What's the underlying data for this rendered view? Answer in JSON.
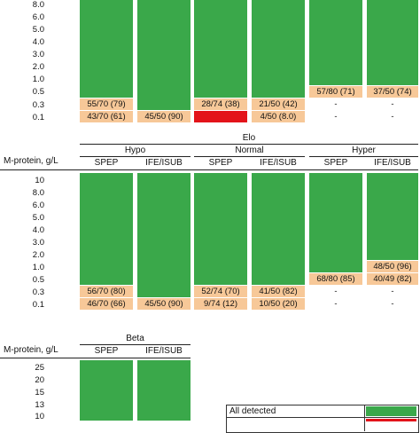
{
  "colors": {
    "detected": "#3aa84a",
    "partial": "#f7c898",
    "none": "#e3131a"
  },
  "top": {
    "y_labels": [
      "8.0",
      "6.0",
      "5.0",
      "4.0",
      "3.0",
      "2.0",
      "1.0",
      "0.5",
      "0.3",
      "0.1"
    ],
    "cells_03": [
      "55/70 (79)",
      "28/74 (38)",
      "21/50 (42)",
      "-",
      "-"
    ],
    "cells_01": [
      "43/70 (61)",
      "45/50 (90)",
      "4/50 (8.0)",
      "-",
      "-"
    ],
    "cells_05": [
      "57/80 (71)",
      "37/50 (74)"
    ]
  },
  "elo": {
    "title": "Elo",
    "groups": [
      "Hypo",
      "Normal",
      "Hyper"
    ],
    "methods": [
      "SPEP",
      "IFE/ISUB",
      "SPEP",
      "IFE/ISUB",
      "SPEP",
      "IFE/ISUB"
    ],
    "axis_label": "M-protein, g/L",
    "y_labels": [
      "10",
      "8.0",
      "6.0",
      "5.0",
      "4.0",
      "3.0",
      "2.0",
      "1.0",
      "0.5",
      "0.3",
      "0.1"
    ],
    "cell_05": "68/80 (85)",
    "cell_10": "48/50 (96)",
    "cell_05b": "40/49 (82)",
    "cells_03": [
      "56/70 (80)",
      "52/74 (70)",
      "41/50 (82)",
      "-",
      "-"
    ],
    "cells_01": [
      "46/70 (66)",
      "45/50 (90)",
      "9/74 (12)",
      "10/50 (20)",
      "-",
      "-"
    ]
  },
  "beta": {
    "title": "Beta",
    "methods": [
      "SPEP",
      "IFE/ISUB"
    ],
    "axis_label": "M-protein, g/L",
    "y_labels": [
      "25",
      "20",
      "15",
      "13",
      "10"
    ]
  },
  "legend": {
    "all_detected": "All detected"
  }
}
